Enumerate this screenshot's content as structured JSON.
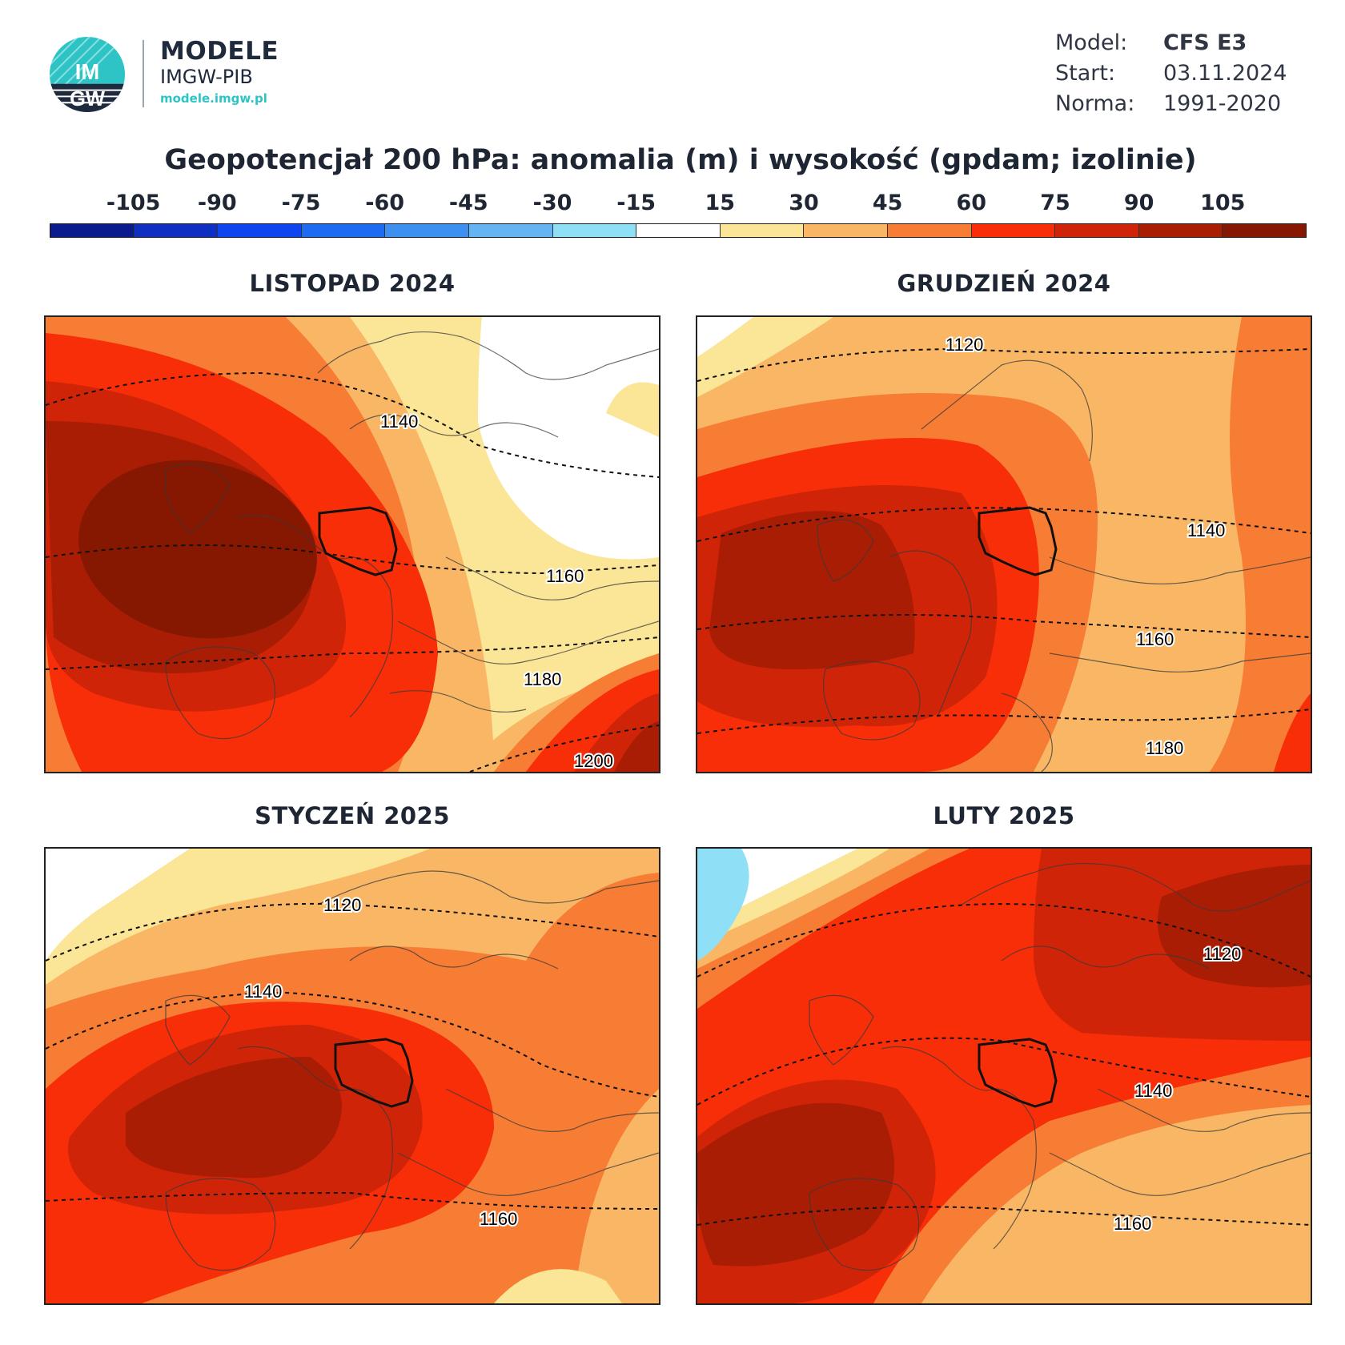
{
  "header": {
    "logo_badge": "IMGW",
    "brand_line1": "MODELE",
    "brand_line2": "IMGW-PIB",
    "brand_url": "modele.imgw.pl"
  },
  "meta": [
    {
      "key": "Model:",
      "value": "CFS E3"
    },
    {
      "key": "Start:",
      "value": "03.11.2024"
    },
    {
      "key": "Norma:",
      "value": "1991-2020"
    }
  ],
  "title": "Geopotencjał 200 hPa: anomalia (m) i wysokość (gpdam; izolinie)",
  "colorbar": {
    "labels": [
      "-105",
      "-90",
      "-75",
      "-60",
      "-45",
      "-30",
      "-15",
      "15",
      "30",
      "45",
      "60",
      "75",
      "90",
      "105"
    ],
    "colors": [
      "#0b1a8c",
      "#0e2fc2",
      "#0f45f0",
      "#1e6af0",
      "#3d8ff0",
      "#64b3f2",
      "#8fe0f6",
      "#ffffff",
      "#fbe596",
      "#f9b766",
      "#f77c34",
      "#f72e08",
      "#d02408",
      "#a81d04",
      "#861802"
    ]
  },
  "panels": [
    {
      "title": "LISTOPAD 2024",
      "isolines": [
        "1140",
        "1160",
        "1180",
        "1200"
      ]
    },
    {
      "title": "GRUDZIEŃ 2024",
      "isolines": [
        "1120",
        "1140",
        "1160",
        "1180"
      ]
    },
    {
      "title": "STYCZEŃ 2025",
      "isolines": [
        "1120",
        "1140",
        "1160"
      ]
    },
    {
      "title": "LUTY 2025",
      "isolines": [
        "1120",
        "1140",
        "1160"
      ]
    }
  ]
}
